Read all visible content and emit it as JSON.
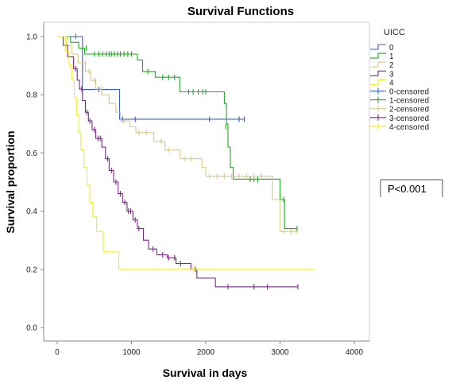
{
  "chart_data": {
    "type": "line",
    "subtype": "kaplan-meier",
    "title": "Survival Functions",
    "xlabel": "Survival in days",
    "ylabel": "Survival proportion",
    "xlim": [
      0,
      4000
    ],
    "ylim": [
      0.0,
      1.0
    ],
    "xticks": [
      "0",
      "1000",
      "2000",
      "3000",
      "4000"
    ],
    "yticks": [
      "0.0",
      "0.2",
      "0.4",
      "0.6",
      "0.8",
      "1.0"
    ],
    "grid": false,
    "legend_title": "UICC",
    "legend_position": "right",
    "annotation": "P<0.001",
    "series": [
      {
        "name": "0",
        "censored_name": "0-censored",
        "color": "#3b5cc6",
        "steps": [
          [
            0,
            1.0
          ],
          [
            340,
            1.0
          ],
          [
            340,
            0.818
          ],
          [
            840,
            0.818
          ],
          [
            840,
            0.716
          ],
          [
            2520,
            0.716
          ]
        ],
        "censored": [
          [
            560,
            0.818
          ],
          [
            880,
            0.716
          ],
          [
            1050,
            0.716
          ],
          [
            2050,
            0.716
          ],
          [
            2450,
            0.716
          ],
          [
            2520,
            0.716
          ]
        ]
      },
      {
        "name": "1",
        "censored_name": "1-censored",
        "color": "#22aa22",
        "steps": [
          [
            0,
            1.0
          ],
          [
            180,
            1.0
          ],
          [
            180,
            0.98
          ],
          [
            290,
            0.98
          ],
          [
            290,
            0.96
          ],
          [
            370,
            0.96
          ],
          [
            370,
            0.94
          ],
          [
            1080,
            0.94
          ],
          [
            1080,
            0.92
          ],
          [
            1150,
            0.92
          ],
          [
            1150,
            0.88
          ],
          [
            1320,
            0.88
          ],
          [
            1320,
            0.86
          ],
          [
            1650,
            0.86
          ],
          [
            1650,
            0.81
          ],
          [
            2250,
            0.81
          ],
          [
            2250,
            0.77
          ],
          [
            2280,
            0.77
          ],
          [
            2280,
            0.7
          ],
          [
            2300,
            0.7
          ],
          [
            2300,
            0.62
          ],
          [
            2330,
            0.62
          ],
          [
            2330,
            0.55
          ],
          [
            2370,
            0.55
          ],
          [
            2370,
            0.51
          ],
          [
            3000,
            0.51
          ],
          [
            3000,
            0.44
          ],
          [
            3060,
            0.44
          ],
          [
            3060,
            0.34
          ],
          [
            3230,
            0.34
          ]
        ],
        "censored": [
          [
            250,
            1.0
          ],
          [
            390,
            0.96
          ],
          [
            500,
            0.94
          ],
          [
            560,
            0.94
          ],
          [
            610,
            0.94
          ],
          [
            660,
            0.94
          ],
          [
            700,
            0.94
          ],
          [
            730,
            0.94
          ],
          [
            770,
            0.94
          ],
          [
            810,
            0.94
          ],
          [
            850,
            0.94
          ],
          [
            900,
            0.94
          ],
          [
            950,
            0.94
          ],
          [
            1000,
            0.94
          ],
          [
            1220,
            0.88
          ],
          [
            1420,
            0.86
          ],
          [
            1500,
            0.86
          ],
          [
            1580,
            0.86
          ],
          [
            1770,
            0.81
          ],
          [
            1830,
            0.81
          ],
          [
            1900,
            0.81
          ],
          [
            1960,
            0.81
          ],
          [
            2000,
            0.81
          ],
          [
            2270,
            0.69
          ],
          [
            2600,
            0.51
          ],
          [
            2650,
            0.51
          ],
          [
            2700,
            0.51
          ],
          [
            3050,
            0.44
          ],
          [
            3230,
            0.34
          ]
        ]
      },
      {
        "name": "2",
        "censored_name": "2-censored",
        "color": "#d8c98a",
        "steps": [
          [
            0,
            1.0
          ],
          [
            130,
            1.0
          ],
          [
            130,
            0.97
          ],
          [
            200,
            0.97
          ],
          [
            200,
            0.94
          ],
          [
            280,
            0.94
          ],
          [
            280,
            0.91
          ],
          [
            380,
            0.91
          ],
          [
            380,
            0.88
          ],
          [
            450,
            0.88
          ],
          [
            450,
            0.85
          ],
          [
            520,
            0.85
          ],
          [
            520,
            0.82
          ],
          [
            600,
            0.82
          ],
          [
            600,
            0.8
          ],
          [
            700,
            0.8
          ],
          [
            700,
            0.77
          ],
          [
            790,
            0.77
          ],
          [
            790,
            0.74
          ],
          [
            850,
            0.74
          ],
          [
            850,
            0.71
          ],
          [
            980,
            0.71
          ],
          [
            980,
            0.69
          ],
          [
            1060,
            0.69
          ],
          [
            1060,
            0.67
          ],
          [
            1300,
            0.67
          ],
          [
            1300,
            0.64
          ],
          [
            1450,
            0.64
          ],
          [
            1450,
            0.61
          ],
          [
            1650,
            0.61
          ],
          [
            1650,
            0.58
          ],
          [
            1950,
            0.58
          ],
          [
            1950,
            0.55
          ],
          [
            2000,
            0.55
          ],
          [
            2000,
            0.52
          ],
          [
            2900,
            0.52
          ],
          [
            2900,
            0.44
          ],
          [
            3000,
            0.44
          ],
          [
            3000,
            0.33
          ],
          [
            3230,
            0.33
          ]
        ],
        "censored": [
          [
            380,
            0.91
          ],
          [
            430,
            0.88
          ],
          [
            510,
            0.85
          ],
          [
            600,
            0.82
          ],
          [
            700,
            0.78
          ],
          [
            900,
            0.71
          ],
          [
            1100,
            0.67
          ],
          [
            1200,
            0.67
          ],
          [
            1400,
            0.64
          ],
          [
            1500,
            0.61
          ],
          [
            1720,
            0.58
          ],
          [
            1800,
            0.58
          ],
          [
            2050,
            0.52
          ],
          [
            2150,
            0.52
          ],
          [
            2250,
            0.52
          ],
          [
            2350,
            0.52
          ],
          [
            2450,
            0.52
          ],
          [
            2550,
            0.52
          ],
          [
            2650,
            0.52
          ],
          [
            2750,
            0.52
          ],
          [
            3050,
            0.33
          ],
          [
            3150,
            0.33
          ],
          [
            3220,
            0.33
          ]
        ]
      },
      {
        "name": "3",
        "censored_name": "3-censored",
        "color": "#7a2a8a",
        "steps": [
          [
            0,
            1.0
          ],
          [
            80,
            1.0
          ],
          [
            80,
            0.97
          ],
          [
            140,
            0.97
          ],
          [
            140,
            0.93
          ],
          [
            220,
            0.93
          ],
          [
            220,
            0.89
          ],
          [
            270,
            0.89
          ],
          [
            270,
            0.85
          ],
          [
            300,
            0.85
          ],
          [
            300,
            0.82
          ],
          [
            340,
            0.82
          ],
          [
            340,
            0.78
          ],
          [
            380,
            0.78
          ],
          [
            380,
            0.74
          ],
          [
            420,
            0.74
          ],
          [
            420,
            0.71
          ],
          [
            470,
            0.71
          ],
          [
            470,
            0.68
          ],
          [
            520,
            0.68
          ],
          [
            520,
            0.65
          ],
          [
            600,
            0.65
          ],
          [
            600,
            0.62
          ],
          [
            650,
            0.62
          ],
          [
            650,
            0.58
          ],
          [
            700,
            0.58
          ],
          [
            700,
            0.54
          ],
          [
            760,
            0.54
          ],
          [
            760,
            0.5
          ],
          [
            820,
            0.5
          ],
          [
            820,
            0.46
          ],
          [
            880,
            0.46
          ],
          [
            880,
            0.43
          ],
          [
            940,
            0.43
          ],
          [
            940,
            0.4
          ],
          [
            1020,
            0.4
          ],
          [
            1020,
            0.37
          ],
          [
            1080,
            0.37
          ],
          [
            1080,
            0.34
          ],
          [
            1160,
            0.34
          ],
          [
            1160,
            0.3
          ],
          [
            1230,
            0.3
          ],
          [
            1230,
            0.27
          ],
          [
            1340,
            0.27
          ],
          [
            1340,
            0.25
          ],
          [
            1480,
            0.25
          ],
          [
            1480,
            0.24
          ],
          [
            1600,
            0.24
          ],
          [
            1600,
            0.22
          ],
          [
            1800,
            0.22
          ],
          [
            1800,
            0.2
          ],
          [
            1880,
            0.2
          ],
          [
            1880,
            0.17
          ],
          [
            2130,
            0.17
          ],
          [
            2130,
            0.14
          ],
          [
            3240,
            0.14
          ]
        ],
        "censored": [
          [
            250,
            0.89
          ],
          [
            330,
            0.82
          ],
          [
            400,
            0.74
          ],
          [
            440,
            0.71
          ],
          [
            500,
            0.68
          ],
          [
            550,
            0.65
          ],
          [
            580,
            0.65
          ],
          [
            680,
            0.58
          ],
          [
            730,
            0.54
          ],
          [
            790,
            0.5
          ],
          [
            850,
            0.46
          ],
          [
            910,
            0.43
          ],
          [
            960,
            0.4
          ],
          [
            990,
            0.4
          ],
          [
            1050,
            0.37
          ],
          [
            1100,
            0.34
          ],
          [
            1290,
            0.27
          ],
          [
            1420,
            0.25
          ],
          [
            1500,
            0.24
          ],
          [
            1580,
            0.24
          ],
          [
            1660,
            0.22
          ],
          [
            1860,
            0.2
          ],
          [
            2300,
            0.14
          ],
          [
            2650,
            0.14
          ],
          [
            2830,
            0.14
          ],
          [
            3240,
            0.14
          ]
        ]
      },
      {
        "name": "4",
        "censored_name": "4-censored",
        "color": "#f2ea2a",
        "steps": [
          [
            0,
            1.0
          ],
          [
            110,
            1.0
          ],
          [
            110,
            0.95
          ],
          [
            160,
            0.95
          ],
          [
            160,
            0.9
          ],
          [
            200,
            0.9
          ],
          [
            200,
            0.85
          ],
          [
            230,
            0.85
          ],
          [
            230,
            0.79
          ],
          [
            260,
            0.79
          ],
          [
            260,
            0.73
          ],
          [
            290,
            0.73
          ],
          [
            290,
            0.67
          ],
          [
            320,
            0.67
          ],
          [
            320,
            0.61
          ],
          [
            360,
            0.61
          ],
          [
            360,
            0.55
          ],
          [
            400,
            0.55
          ],
          [
            400,
            0.49
          ],
          [
            440,
            0.49
          ],
          [
            440,
            0.43
          ],
          [
            480,
            0.43
          ],
          [
            480,
            0.38
          ],
          [
            530,
            0.38
          ],
          [
            530,
            0.33
          ],
          [
            620,
            0.33
          ],
          [
            620,
            0.26
          ],
          [
            830,
            0.26
          ],
          [
            830,
            0.2
          ],
          [
            3470,
            0.2
          ]
        ],
        "censored": [
          [
            1850,
            0.2
          ]
        ]
      }
    ]
  }
}
